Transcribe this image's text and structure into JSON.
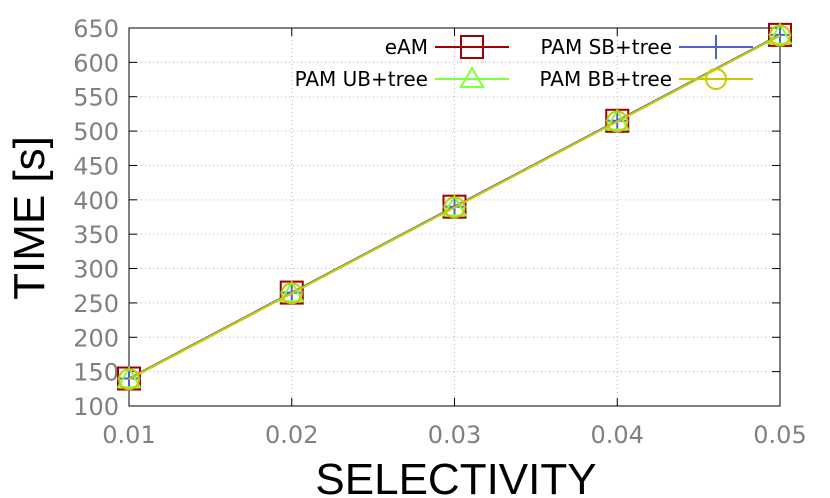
{
  "chart_data": {
    "type": "line",
    "xlabel": "SELECTIVITY",
    "ylabel": "TIME [s]",
    "x": [
      0.01,
      0.02,
      0.03,
      0.04,
      0.05
    ],
    "x_ticks": [
      "0.01",
      "0.02",
      "0.03",
      "0.04",
      "0.05"
    ],
    "y_ticks": [
      "100",
      "150",
      "200",
      "250",
      "300",
      "350",
      "400",
      "450",
      "500",
      "550",
      "600",
      "650"
    ],
    "xlim": [
      0.01,
      0.05
    ],
    "ylim": [
      100,
      650
    ],
    "grid": true,
    "legend_position": "top",
    "series": [
      {
        "name": "eAM",
        "marker": "square",
        "color": "#a00000",
        "values": [
          140,
          265,
          390,
          515,
          640
        ]
      },
      {
        "name": "PAM SB+tree",
        "marker": "plus",
        "color": "#5060d0",
        "values": [
          140,
          265,
          390,
          515,
          640
        ]
      },
      {
        "name": "PAM UB+tree",
        "marker": "triangle",
        "color": "#80ff40",
        "values": [
          139,
          264,
          389,
          514,
          639
        ]
      },
      {
        "name": "PAM BB+tree",
        "marker": "circle",
        "color": "#c8c800",
        "values": [
          139,
          264,
          389,
          514,
          639
        ]
      }
    ]
  }
}
